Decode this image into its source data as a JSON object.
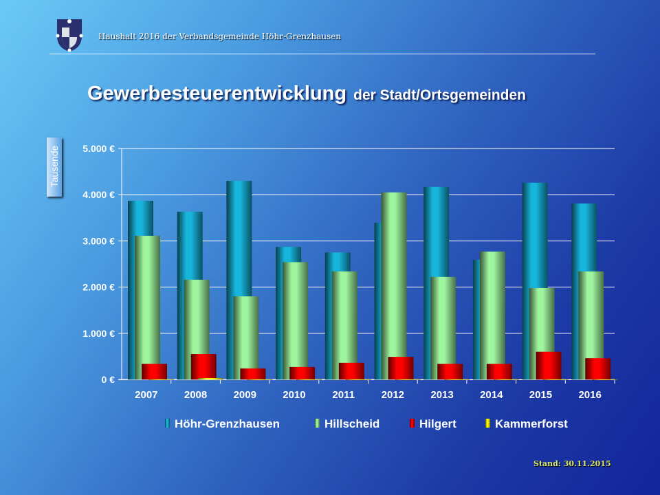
{
  "header": {
    "title": "Haushalt 2016 der Verbandsgemeinde Höhr-Grenzhausen"
  },
  "slide_title": {
    "main": "Gewerbesteuerentwicklung",
    "sub": "der Stadt/Ortsgemeinden"
  },
  "footer": {
    "stand": "Stand: 30.11.2015"
  },
  "chart_data": {
    "type": "bar",
    "title": "Gewerbesteuerentwicklung der Stadt/Ortsgemeinden",
    "ylabel": "Tausende",
    "xlabel": "",
    "ylim": [
      0,
      5000
    ],
    "yticks": [
      0,
      1000,
      2000,
      3000,
      4000,
      5000
    ],
    "ytick_labels": [
      "0 €",
      "1.000 €",
      "2.000 €",
      "3.000 €",
      "4.000 €",
      "5.000 €"
    ],
    "grid": true,
    "legend_position": "bottom",
    "categories": [
      "2007",
      "2008",
      "2009",
      "2010",
      "2011",
      "2012",
      "2013",
      "2014",
      "2015",
      "2016"
    ],
    "series": [
      {
        "name": "Höhr-Grenzhausen",
        "color": "#17b4dc",
        "values": [
          3870,
          3630,
          4300,
          2870,
          2750,
          3390,
          4170,
          2590,
          4260,
          3810
        ]
      },
      {
        "name": "Hillscheid",
        "color": "#9ef59e",
        "values": [
          3110,
          2160,
          1800,
          2540,
          2340,
          4050,
          2220,
          2770,
          1980,
          2340
        ]
      },
      {
        "name": "Hilgert",
        "color": "#ff0000",
        "values": [
          340,
          550,
          240,
          270,
          360,
          490,
          340,
          340,
          600,
          460
        ]
      },
      {
        "name": "Kammerforst",
        "color": "#ffff00",
        "values": [
          5,
          30,
          5,
          5,
          5,
          5,
          5,
          5,
          5,
          5
        ]
      }
    ]
  }
}
